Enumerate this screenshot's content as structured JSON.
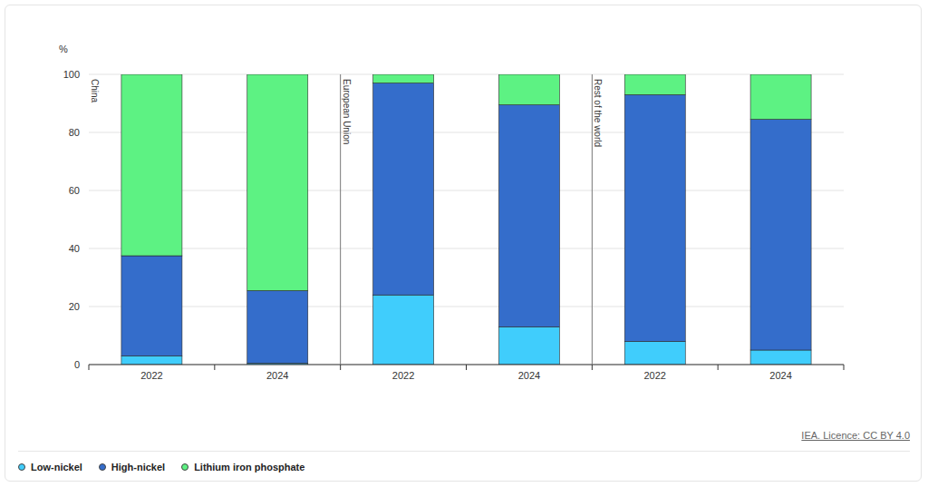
{
  "chart_data": {
    "type": "bar",
    "stacked": true,
    "grid": true,
    "ylabel": "%",
    "panels": [
      "China",
      "European Union",
      "Rest of the world"
    ],
    "categories": [
      "2022",
      "2024",
      "2022",
      "2024",
      "2022",
      "2024"
    ],
    "series": [
      {
        "name": "Low-nickel",
        "color": "#40cdfc",
        "values": [
          3,
          0.5,
          24,
          13,
          8,
          5
        ]
      },
      {
        "name": "High-nickel",
        "color": "#346dcb",
        "values": [
          34.5,
          25,
          73,
          76.5,
          85,
          79.5
        ]
      },
      {
        "name": "Lithium iron phosphate",
        "color": "#5df283",
        "values": [
          62.5,
          74.5,
          3,
          10.5,
          7,
          15.5
        ]
      }
    ],
    "ylim": [
      0,
      100
    ],
    "yticks": [
      0,
      20,
      40,
      60,
      80,
      100
    ],
    "source": "IEA. Licence: CC BY 4.0"
  }
}
